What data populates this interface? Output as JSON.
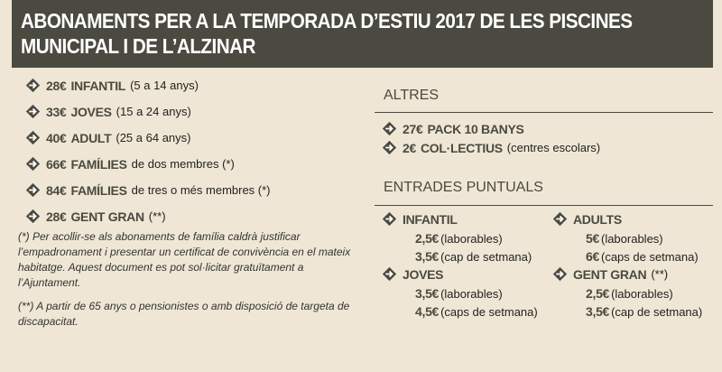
{
  "header": {
    "title_lines": [
      "ABONAMENTS PER A LA TEMPORADA D’ESTIU 2017 DE LES PISCINES",
      "MUNICIPAL I DE L’ALZINAR"
    ]
  },
  "abonaments": {
    "items": [
      {
        "price": "28€",
        "name": "INFANTIL",
        "detail": "(5 a 14 anys)"
      },
      {
        "price": "33€",
        "name": "JOVES",
        "detail": "(15 a 24 anys)"
      },
      {
        "price": "40€",
        "name": "ADULT",
        "detail": "(25 a 64 anys)"
      },
      {
        "price": "66€",
        "name": "FAMÍLIES",
        "detail": "de dos membres (*)"
      },
      {
        "price": "84€",
        "name": "FAMÍLIES",
        "detail": "de tres o més membres (*)"
      },
      {
        "price": "28€",
        "name": "GENT GRAN",
        "detail": "(**)"
      }
    ],
    "notes": [
      "(*) Per acollir-se als abonaments de família caldrà justificar l’empadronament i presentar un certificat de convivència en el mateix habitatge. Aquest document es pot sol·licitar gratuïtament a l’Ajuntament.",
      "(**) A partir de 65 anys o pensionistes o amb disposició de targeta de discapacitat."
    ]
  },
  "altres": {
    "heading": "ALTRES",
    "items": [
      {
        "price": "27€",
        "name": "PACK 10 BANYS"
      },
      {
        "price": "2€",
        "name": "COL·LECTIUS",
        "detail": "(centres escolars)"
      }
    ]
  },
  "entrades": {
    "heading": "ENTRADES PUNTUALS",
    "groups": [
      {
        "name": "INFANTIL",
        "rows": [
          {
            "price": "2,5€",
            "detail": "(laborables)"
          },
          {
            "price": "3,5€",
            "detail": "(cap de setmana)"
          }
        ]
      },
      {
        "name": "ADULTS",
        "rows": [
          {
            "price": "5€",
            "detail": "(laborables)"
          },
          {
            "price": "6€",
            "detail": "(caps de setmana)"
          }
        ]
      },
      {
        "name": "JOVES",
        "rows": [
          {
            "price": "3,5€",
            "detail": "(laborables)"
          },
          {
            "price": "4,5€",
            "detail": "(caps de setmana)"
          }
        ]
      },
      {
        "name": "GENT GRAN",
        "extra": "(**)",
        "rows": [
          {
            "price": "2,5€",
            "detail": "(laborables)"
          },
          {
            "price": "3,5€",
            "detail": "(cap de setmana)"
          }
        ]
      }
    ]
  }
}
